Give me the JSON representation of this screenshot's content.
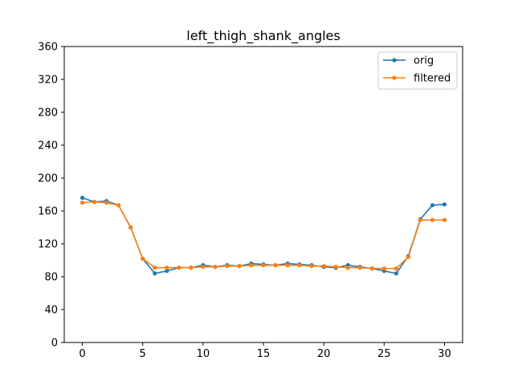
{
  "chart_data": {
    "type": "line",
    "title": "left_thigh_shank_angles",
    "xlabel": "",
    "ylabel": "",
    "xlim": [
      -1.5,
      31.5
    ],
    "ylim": [
      0,
      360
    ],
    "xticks": [
      0,
      5,
      10,
      15,
      20,
      25,
      30
    ],
    "yticks": [
      0,
      40,
      80,
      120,
      160,
      200,
      240,
      280,
      320,
      360
    ],
    "grid": false,
    "legend_position": "top-right",
    "x": [
      0,
      1,
      2,
      3,
      4,
      5,
      6,
      7,
      8,
      9,
      10,
      11,
      12,
      13,
      14,
      15,
      16,
      17,
      18,
      19,
      20,
      21,
      22,
      23,
      24,
      25,
      26,
      27,
      28,
      29,
      30
    ],
    "series": [
      {
        "name": "orig",
        "color": "#1f77b4",
        "marker": "circle",
        "values": [
          176,
          171,
          172,
          167,
          140,
          102,
          84,
          87,
          91,
          91,
          94,
          92,
          94,
          93,
          96,
          95,
          94,
          96,
          95,
          94,
          92,
          91,
          94,
          92,
          90,
          87,
          84,
          105,
          150,
          167,
          168
        ]
      },
      {
        "name": "filtered",
        "color": "#ff7f0e",
        "marker": "circle",
        "values": [
          170,
          171,
          170,
          167,
          140,
          102,
          91,
          91,
          91,
          91,
          92,
          92,
          93,
          93,
          94,
          94,
          94,
          94,
          94,
          93,
          93,
          92,
          91,
          91,
          90,
          90,
          90,
          104,
          149,
          149,
          149
        ]
      }
    ]
  }
}
